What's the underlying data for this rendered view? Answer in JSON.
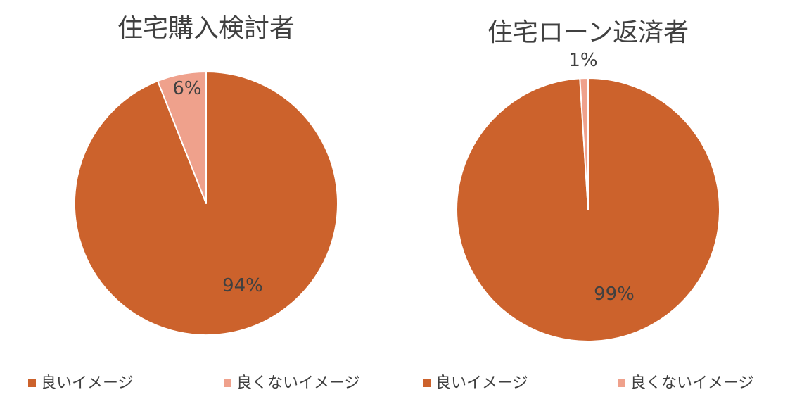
{
  "chart_data": [
    {
      "type": "pie",
      "title": "住宅購入検討者",
      "series": [
        {
          "name": "良いイメージ",
          "value": 94,
          "label": "94%",
          "color": "#CC622C"
        },
        {
          "name": "良くないイメージ",
          "value": 6,
          "label": "6%",
          "color": "#EFA18C"
        }
      ],
      "legend": "bottom"
    },
    {
      "type": "pie",
      "title": "住宅ローン返済者",
      "series": [
        {
          "name": "良いイメージ",
          "value": 99,
          "label": "99%",
          "color": "#CC622C"
        },
        {
          "name": "良くないイメージ",
          "value": 1,
          "label": "1%",
          "color": "#EFA18C"
        }
      ],
      "legend": "bottom"
    }
  ]
}
